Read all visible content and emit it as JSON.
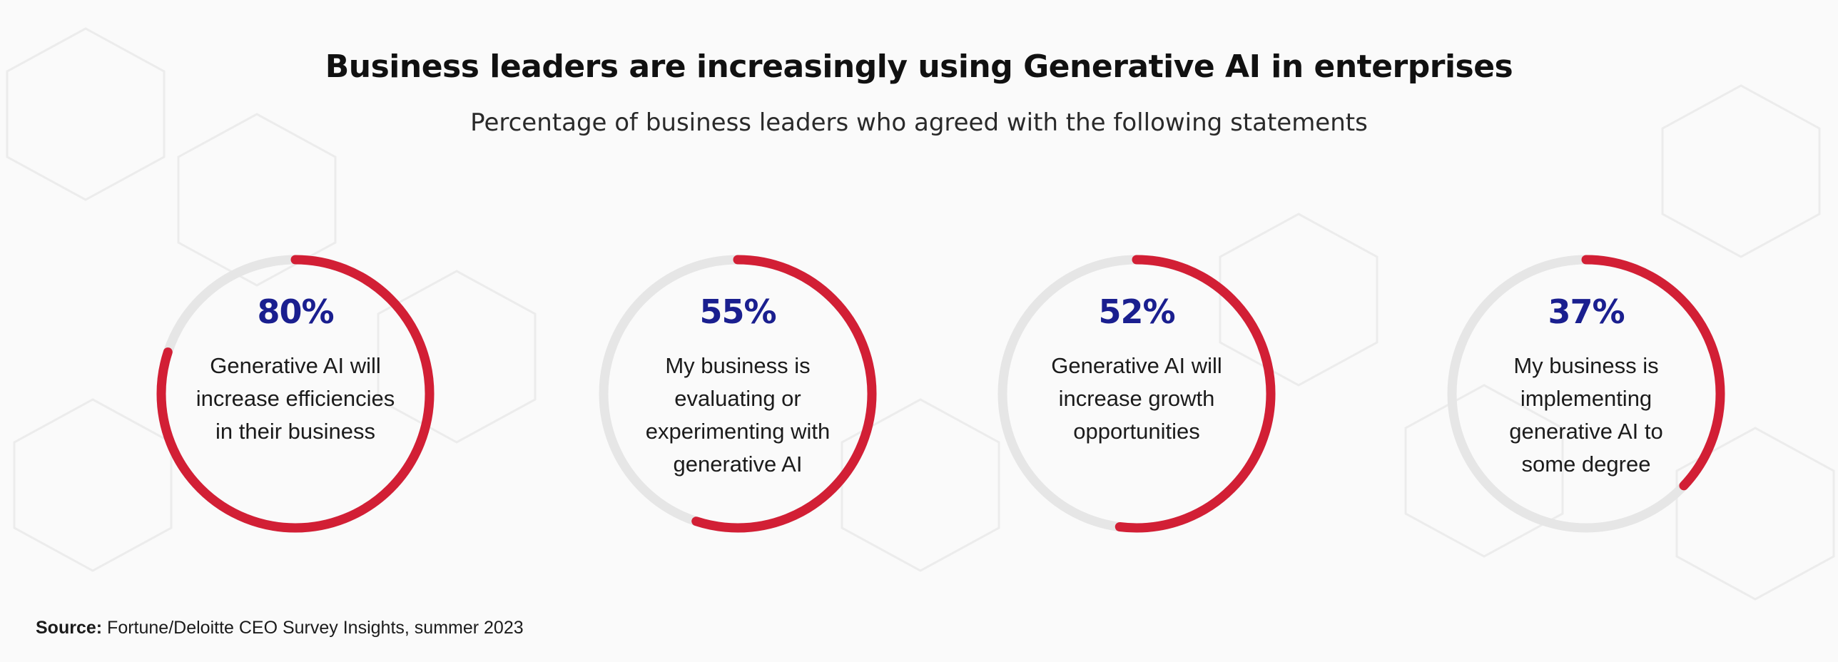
{
  "title": "Business leaders are increasingly using Generative AI in enterprises",
  "subtitle": "Percentage of business leaders who agreed with the following statements",
  "source": {
    "label": "Source:",
    "text": "Fortune/Deloitte CEO Survey Insights, summer 2023"
  },
  "colors": {
    "accent": "#d21f35",
    "track": "#e6e6e6",
    "percent": "#1a1f8f"
  },
  "chart_data": {
    "type": "pie",
    "subtype": "donut-progress",
    "items": [
      {
        "value": 80,
        "label": "80%",
        "statement": [
          "Generative AI will",
          "increase efficiencies",
          "in their business"
        ]
      },
      {
        "value": 55,
        "label": "55%",
        "statement": [
          "My business is",
          "evaluating or",
          "experimenting with",
          "generative AI"
        ]
      },
      {
        "value": 52,
        "label": "52%",
        "statement": [
          "Generative AI will",
          "increase growth",
          "opportunities"
        ]
      },
      {
        "value": 37,
        "label": "37%",
        "statement": [
          "My business is",
          "implementing",
          "generative AI to",
          "some degree"
        ]
      }
    ]
  }
}
